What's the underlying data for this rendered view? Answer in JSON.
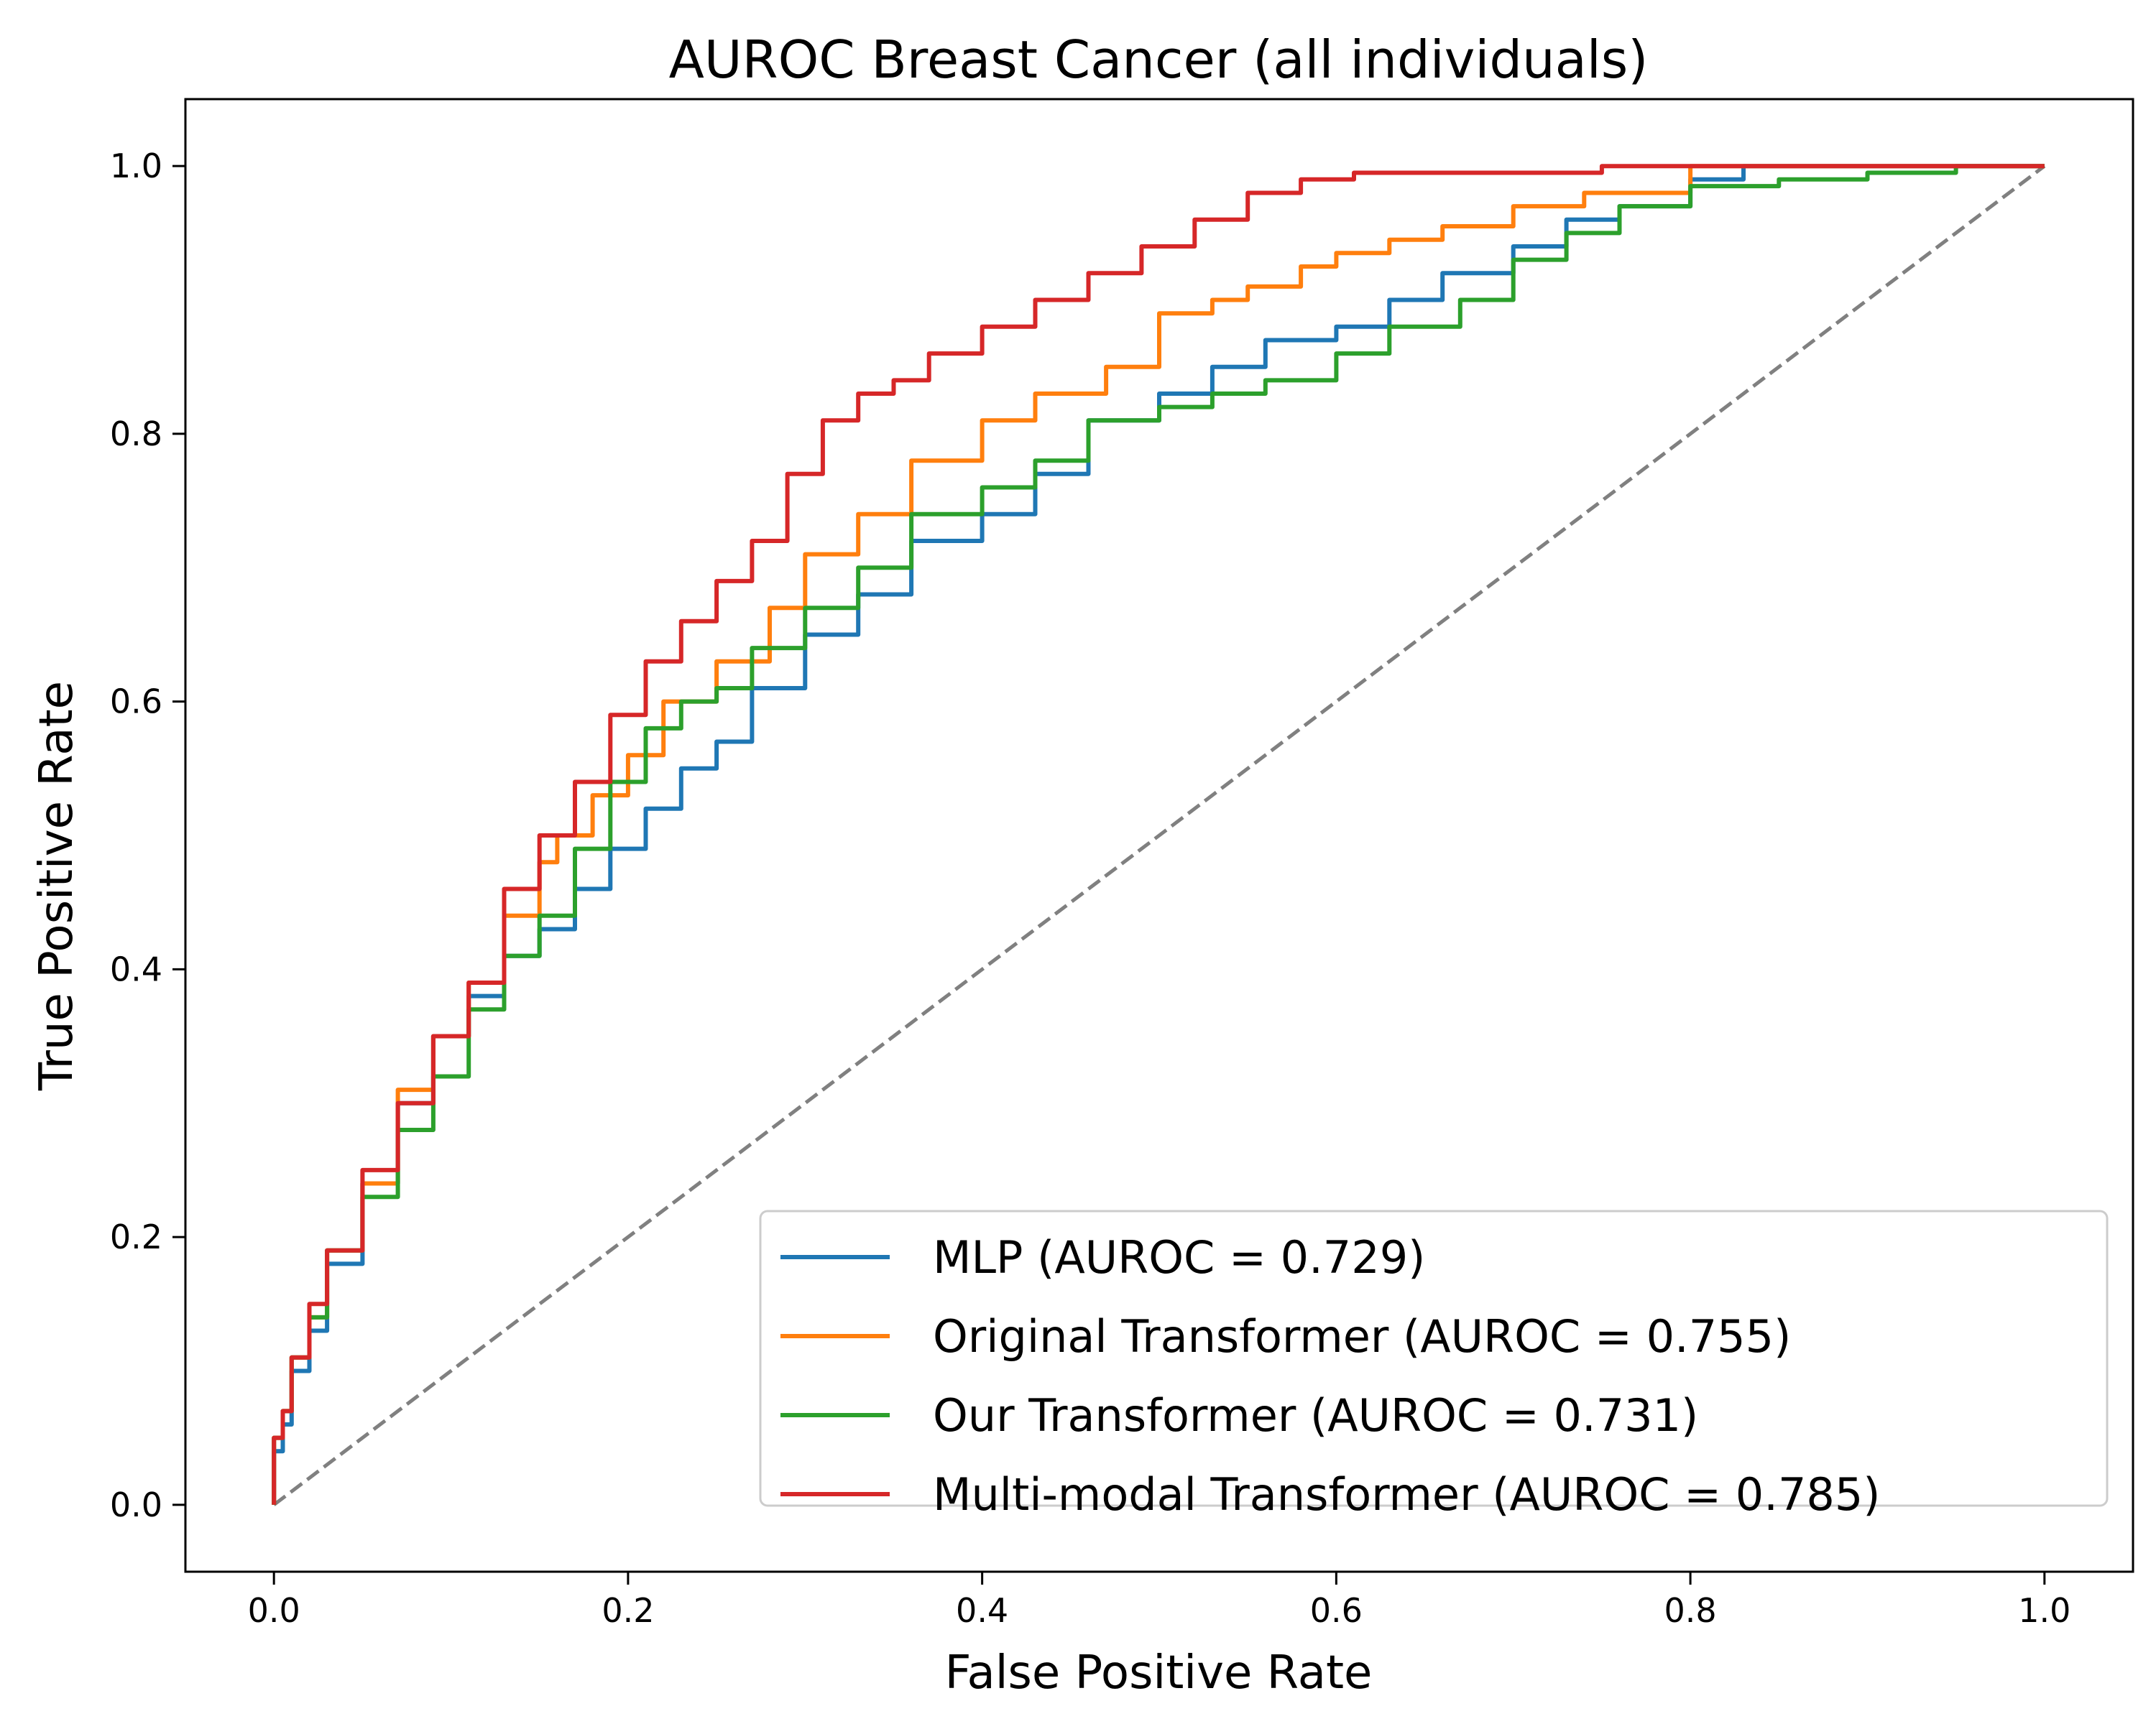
{
  "chart_data": {
    "type": "line",
    "title": "AUROC Breast Cancer (all individuals)",
    "xlabel": "False Positive Rate",
    "ylabel": "True Positive Rate",
    "xlim": [
      -0.05,
      1.05
    ],
    "ylim": [
      -0.05,
      1.05
    ],
    "xticks": [
      0.0,
      0.2,
      0.4,
      0.6,
      0.8,
      1.0
    ],
    "yticks": [
      0.0,
      0.2,
      0.4,
      0.6,
      0.8,
      1.0
    ],
    "xtick_labels": [
      "0.0",
      "0.2",
      "0.4",
      "0.6",
      "0.8",
      "1.0"
    ],
    "ytick_labels": [
      "0.0",
      "0.2",
      "0.4",
      "0.6",
      "0.8",
      "1.0"
    ],
    "grid": false,
    "legend_position": "lower-right",
    "diagonal_reference": {
      "x": [
        0,
        1
      ],
      "y": [
        0,
        1
      ],
      "color": "#808080",
      "style": "dashed"
    },
    "series": [
      {
        "name": "MLP (AUROC = 0.729)",
        "color": "#1f77b4",
        "x": [
          0,
          0.005,
          0.01,
          0.02,
          0.03,
          0.05,
          0.07,
          0.09,
          0.11,
          0.13,
          0.15,
          0.17,
          0.19,
          0.21,
          0.23,
          0.25,
          0.27,
          0.3,
          0.33,
          0.36,
          0.4,
          0.43,
          0.46,
          0.5,
          0.53,
          0.56,
          0.6,
          0.63,
          0.66,
          0.7,
          0.73,
          0.76,
          0.8,
          0.83,
          0.86,
          0.9,
          0.95,
          1.0
        ],
        "y": [
          0,
          0.04,
          0.06,
          0.1,
          0.13,
          0.18,
          0.24,
          0.3,
          0.35,
          0.38,
          0.41,
          0.43,
          0.46,
          0.49,
          0.52,
          0.55,
          0.57,
          0.61,
          0.65,
          0.68,
          0.72,
          0.74,
          0.77,
          0.81,
          0.83,
          0.85,
          0.87,
          0.88,
          0.9,
          0.92,
          0.94,
          0.96,
          0.97,
          0.99,
          1.0,
          1.0,
          1.0,
          1.0
        ]
      },
      {
        "name": "Original Transformer (AUROC = 0.755)",
        "color": "#ff7f0e",
        "x": [
          0,
          0.005,
          0.01,
          0.02,
          0.03,
          0.05,
          0.07,
          0.09,
          0.11,
          0.13,
          0.15,
          0.16,
          0.18,
          0.2,
          0.22,
          0.25,
          0.28,
          0.3,
          0.33,
          0.36,
          0.4,
          0.43,
          0.47,
          0.5,
          0.5,
          0.53,
          0.55,
          0.58,
          0.6,
          0.63,
          0.66,
          0.7,
          0.74,
          0.8,
          0.88,
          0.95,
          1.0
        ],
        "y": [
          0,
          0.05,
          0.07,
          0.11,
          0.14,
          0.19,
          0.24,
          0.31,
          0.35,
          0.39,
          0.44,
          0.48,
          0.5,
          0.53,
          0.56,
          0.6,
          0.63,
          0.67,
          0.71,
          0.74,
          0.78,
          0.81,
          0.83,
          0.85,
          0.87,
          0.89,
          0.9,
          0.91,
          0.925,
          0.935,
          0.945,
          0.955,
          0.97,
          0.98,
          1.0,
          1.0,
          1.0
        ]
      },
      {
        "name": "Our Transformer (AUROC = 0.731)",
        "color": "#2ca02c",
        "x": [
          0,
          0.005,
          0.01,
          0.02,
          0.03,
          0.05,
          0.07,
          0.09,
          0.11,
          0.13,
          0.15,
          0.17,
          0.19,
          0.21,
          0.23,
          0.25,
          0.27,
          0.3,
          0.33,
          0.36,
          0.4,
          0.43,
          0.46,
          0.5,
          0.53,
          0.56,
          0.6,
          0.63,
          0.67,
          0.7,
          0.73,
          0.76,
          0.8,
          0.85,
          0.9,
          0.95,
          1.0
        ],
        "y": [
          0,
          0.05,
          0.07,
          0.11,
          0.14,
          0.19,
          0.23,
          0.28,
          0.32,
          0.37,
          0.41,
          0.44,
          0.49,
          0.54,
          0.58,
          0.6,
          0.61,
          0.64,
          0.67,
          0.7,
          0.74,
          0.76,
          0.78,
          0.81,
          0.82,
          0.83,
          0.84,
          0.86,
          0.88,
          0.9,
          0.93,
          0.95,
          0.97,
          0.985,
          0.99,
          0.995,
          1.0
        ]
      },
      {
        "name": "Multi-modal Transformer (AUROC = 0.785)",
        "color": "#d62728",
        "x": [
          0,
          0.005,
          0.01,
          0.02,
          0.03,
          0.05,
          0.07,
          0.09,
          0.11,
          0.13,
          0.15,
          0.17,
          0.19,
          0.21,
          0.23,
          0.25,
          0.27,
          0.29,
          0.31,
          0.33,
          0.35,
          0.37,
          0.4,
          0.43,
          0.46,
          0.49,
          0.52,
          0.55,
          0.58,
          0.61,
          0.64,
          0.7,
          0.75,
          0.8,
          0.85,
          0.9,
          1.0
        ],
        "y": [
          0,
          0.05,
          0.07,
          0.11,
          0.15,
          0.19,
          0.25,
          0.3,
          0.35,
          0.39,
          0.46,
          0.5,
          0.54,
          0.59,
          0.63,
          0.66,
          0.69,
          0.72,
          0.77,
          0.81,
          0.83,
          0.84,
          0.86,
          0.88,
          0.9,
          0.92,
          0.94,
          0.96,
          0.98,
          0.99,
          0.995,
          0.995,
          0.995,
          1.0,
          1.0,
          1.0,
          1.0
        ]
      }
    ]
  }
}
